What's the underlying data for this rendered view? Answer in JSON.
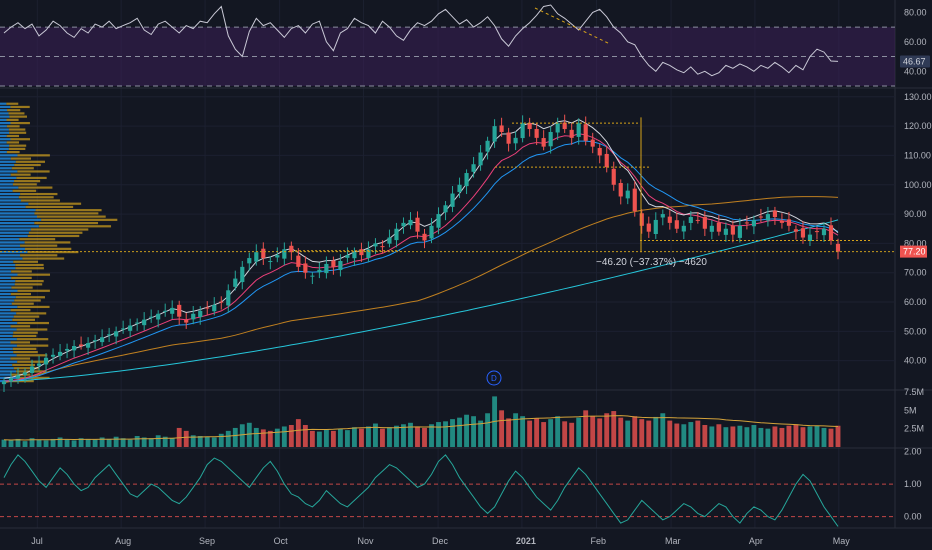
{
  "chart_data": [
    {
      "type": "line",
      "panel": "rsi",
      "ylim": [
        30,
        85
      ],
      "y_ticks": [
        "80.00",
        "60.00",
        "40.00"
      ],
      "y_tick_values": [
        80,
        60,
        40
      ],
      "bands": [
        70,
        50,
        30
      ],
      "last_value_label": "46.67",
      "last_value": 46.67,
      "shaded_band": [
        30,
        70
      ],
      "colors": {
        "line": "#c9c9d6",
        "band": "#3a1f55",
        "dashed": "#8c8fa0",
        "divergence": "#d6a31a"
      },
      "series": [
        {
          "values": [
            66,
            70,
            73,
            69,
            72,
            64,
            68,
            74,
            71,
            66,
            63,
            69,
            66,
            72,
            70,
            74,
            69,
            71,
            73,
            76,
            68,
            65,
            72,
            74,
            70,
            66,
            71,
            69,
            74,
            73,
            79,
            84,
            64,
            55,
            50,
            67,
            76,
            71,
            73,
            68,
            63,
            69,
            71,
            66,
            72,
            74,
            60,
            54,
            66,
            69,
            76,
            73,
            71,
            66,
            74,
            70,
            64,
            61,
            68,
            73,
            71,
            74,
            79,
            82,
            77,
            72,
            75,
            70,
            73,
            77,
            71,
            62,
            57,
            64,
            69,
            73,
            78,
            84,
            85,
            79,
            76,
            72,
            68,
            74,
            80,
            82,
            77,
            70,
            66,
            60,
            58,
            50,
            44,
            40,
            46,
            44,
            41,
            39,
            43,
            38,
            40,
            37,
            39,
            44,
            42,
            45,
            43,
            40,
            44,
            42,
            46,
            43,
            39,
            44,
            41,
            50,
            55,
            53,
            47,
            46.67
          ]
        }
      ]
    },
    {
      "type": "candlestick",
      "panel": "price",
      "ylim": [
        30,
        133
      ],
      "y_ticks": [
        "130.00",
        "120.00",
        "110.00",
        "100.00",
        "90.00",
        "80.00",
        "70.00",
        "60.00",
        "50.00",
        "40.00"
      ],
      "y_tick_values": [
        130,
        120,
        110,
        100,
        90,
        80,
        70,
        60,
        50,
        40
      ],
      "x_ticks": [
        "Jul",
        "Aug",
        "Sep",
        "Oct",
        "Nov",
        "Dec",
        "2021",
        "Feb",
        "Mar",
        "Apr",
        "May"
      ],
      "x_tick_positions": [
        0.04,
        0.13,
        0.22,
        0.3,
        0.39,
        0.47,
        0.56,
        0.64,
        0.72,
        0.81,
        0.9
      ],
      "last_price_label": "77.20",
      "last_price": 77.2,
      "measure_label": "−46.20 (−37.37%) −4620",
      "annotation_marker": "D",
      "closes": [
        33,
        34,
        35,
        36,
        38,
        39,
        41,
        42,
        43,
        44,
        45,
        45,
        46,
        47,
        48,
        49,
        50,
        51,
        52,
        53,
        54,
        55,
        56,
        57,
        58,
        55,
        53,
        56,
        57,
        58,
        59,
        60,
        64,
        68,
        72,
        75,
        77,
        75,
        74,
        76,
        78,
        77,
        72,
        70,
        69,
        71,
        73,
        72,
        74,
        76,
        77,
        76,
        78,
        80,
        79,
        82,
        85,
        87,
        88,
        84,
        81,
        86,
        90,
        93,
        97,
        100,
        104,
        107,
        111,
        115,
        120,
        118,
        114,
        116,
        121,
        119,
        116,
        113,
        118,
        121,
        119,
        116,
        121,
        115,
        113,
        110,
        106,
        100,
        96,
        98,
        91,
        86,
        84,
        88,
        90,
        87,
        85,
        86,
        89,
        88,
        85,
        86,
        84,
        85,
        83,
        86,
        87,
        88,
        89,
        90,
        89,
        87,
        86,
        84,
        82,
        83,
        84,
        85,
        81,
        77.2
      ],
      "colors": {
        "up": "#26a69a",
        "down": "#ef5350",
        "ema_fast": "#d1d4dc",
        "ema_mid": "#ec407a",
        "ema_slow": "#2196f3",
        "ma_long": "#c08020",
        "ma_200": "#26c6da",
        "volume_profile_up": "#2196f3",
        "volume_profile_down": "#c79a1d"
      }
    },
    {
      "type": "bar",
      "panel": "volume",
      "ylim": [
        0,
        7.5
      ],
      "y_ticks": [
        "7.5M",
        "5M",
        "2.5M"
      ],
      "y_tick_values": [
        7.5,
        5,
        2.5
      ],
      "values": [
        1.0,
        0.9,
        1.1,
        0.8,
        1.2,
        1.0,
        0.9,
        1.1,
        1.3,
        1.0,
        0.9,
        1.2,
        1.1,
        1.0,
        1.3,
        1.1,
        1.4,
        1.2,
        1.0,
        1.5,
        1.3,
        1.2,
        1.6,
        1.4,
        1.2,
        2.6,
        2.2,
        1.6,
        1.5,
        1.4,
        1.3,
        1.8,
        2.2,
        2.6,
        3.1,
        3.3,
        2.6,
        2.4,
        2.2,
        2.5,
        2.8,
        3.0,
        3.8,
        3.0,
        2.2,
        2.1,
        2.4,
        2.2,
        2.5,
        2.3,
        2.7,
        2.5,
        2.8,
        3.2,
        2.5,
        2.7,
        2.9,
        3.1,
        3.3,
        2.8,
        2.6,
        3.1,
        3.4,
        3.5,
        3.8,
        4.0,
        4.4,
        4.2,
        3.6,
        4.6,
        6.9,
        5.0,
        3.9,
        4.6,
        4.2,
        3.6,
        3.9,
        3.4,
        3.8,
        4.2,
        3.5,
        3.3,
        4.0,
        5.0,
        4.2,
        3.9,
        4.6,
        4.9,
        4.0,
        3.6,
        4.2,
        3.8,
        3.6,
        4.1,
        4.6,
        3.6,
        3.2,
        3.1,
        3.4,
        3.6,
        3.0,
        2.8,
        3.1,
        2.7,
        2.8,
        2.9,
        2.7,
        3.0,
        2.6,
        2.5,
        2.8,
        2.6,
        2.9,
        3.1,
        2.7,
        2.8,
        2.9,
        2.6,
        2.5,
        2.9
      ],
      "colors": {
        "up": "#26a69a",
        "down": "#ef5350",
        "ma": "#d4a33a"
      }
    },
    {
      "type": "line",
      "panel": "oscillator",
      "ylim": [
        -0.35,
        2.05
      ],
      "y_ticks": [
        "2.00",
        "1.00",
        "0.00"
      ],
      "y_tick_values": [
        2.0,
        1.0,
        0.0
      ],
      "reference_lines": [
        1.0,
        0.0
      ],
      "colors": {
        "line": "#26a69a",
        "upper": "#ef5350",
        "zero": "#ef5350"
      },
      "series": [
        {
          "values": [
            1.2,
            1.6,
            1.9,
            1.7,
            1.4,
            1.1,
            0.9,
            1.2,
            1.5,
            1.3,
            1.0,
            0.8,
            0.9,
            1.2,
            1.4,
            1.6,
            1.3,
            1.0,
            0.7,
            0.6,
            0.8,
            1.0,
            0.9,
            0.7,
            0.5,
            0.4,
            0.6,
            0.9,
            1.2,
            1.6,
            1.8,
            1.7,
            1.5,
            1.3,
            1.1,
            0.9,
            1.2,
            1.5,
            1.7,
            1.4,
            1.0,
            0.7,
            0.6,
            0.4,
            0.3,
            0.5,
            0.8,
            0.6,
            0.4,
            0.3,
            0.5,
            0.7,
            0.9,
            1.2,
            1.4,
            1.6,
            1.5,
            1.3,
            1.1,
            0.9,
            1.0,
            1.3,
            1.7,
            1.9,
            1.6,
            1.2,
            0.9,
            0.6,
            0.3,
            0.1,
            0.3,
            0.7,
            1.1,
            1.4,
            1.2,
            0.9,
            0.6,
            0.4,
            0.2,
            0.5,
            0.9,
            1.2,
            1.5,
            1.3,
            1.0,
            0.7,
            0.4,
            0.1,
            -0.2,
            -0.1,
            0.2,
            0.5,
            0.3,
            0.1,
            -0.1,
            0.0,
            0.2,
            0.4,
            0.3,
            0.1,
            0.0,
            0.2,
            0.4,
            0.3,
            0.0,
            -0.2,
            0.1,
            0.3,
            0.2,
            0.0,
            -0.1,
            0.2,
            0.6,
            1.0,
            1.3,
            1.1,
            0.7,
            0.3,
            0.0,
            -0.3
          ]
        }
      ]
    }
  ]
}
